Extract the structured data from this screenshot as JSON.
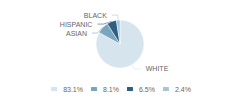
{
  "chart_data": {
    "type": "pie",
    "categories": [
      "WHITE",
      "ASIAN",
      "HISPANIC",
      "BLACK"
    ],
    "values": [
      83.1,
      8.1,
      6.5,
      2.4
    ],
    "value_labels": [
      "83.1%",
      "8.1%",
      "6.5%",
      "2.4%"
    ],
    "colors": [
      "#d6e4ee",
      "#7aa5bf",
      "#2c5f80",
      "#a8c5d6"
    ],
    "legend": "bottom"
  }
}
